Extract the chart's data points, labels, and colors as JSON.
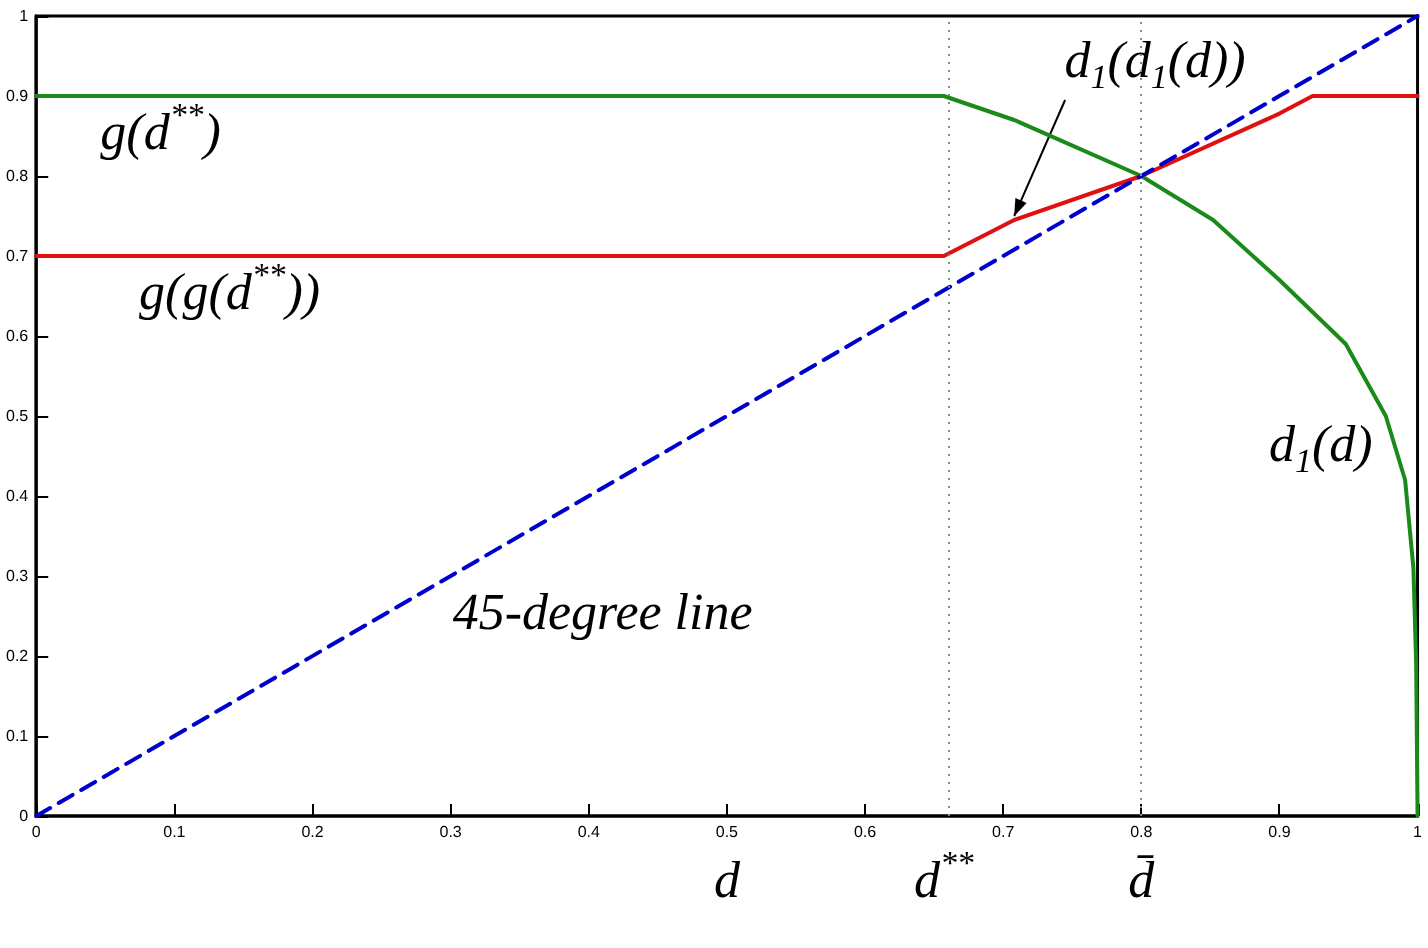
{
  "chart_data": {
    "type": "line",
    "xlabel": "d",
    "xlim": [
      0,
      1
    ],
    "ylim": [
      0,
      1
    ],
    "xticks": [
      0,
      0.1,
      0.2,
      0.3,
      0.4,
      0.5,
      0.6,
      0.7,
      0.8,
      0.9,
      1
    ],
    "yticks": [
      0,
      0.1,
      0.2,
      0.3,
      0.4,
      0.5,
      0.6,
      0.7,
      0.8,
      0.9,
      1
    ],
    "grid": false,
    "marker": "none",
    "series": [
      {
        "color": "#1a8a1a",
        "line_style": "solid",
        "x": [
          0,
          0.657,
          0.708,
          0.8,
          0.852,
          0.9,
          0.948,
          0.977,
          0.991,
          0.997,
          0.999,
          1
        ],
        "values": [
          0.9,
          0.9,
          0.87,
          0.8,
          0.745,
          0.67,
          0.59,
          0.5,
          0.42,
          0.31,
          0.19,
          0
        ]
      },
      {
        "color": "#e01010",
        "line_style": "solid",
        "x": [
          0,
          0.657,
          0.708,
          0.8,
          0.9,
          0.924,
          1
        ],
        "values": [
          0.7,
          0.7,
          0.745,
          0.8,
          0.878,
          0.9,
          0.9
        ]
      },
      {
        "color": "#0000cc",
        "line_style": "dashed",
        "x": [
          0,
          1
        ],
        "values": [
          0,
          1
        ]
      }
    ],
    "ref_lines": [
      {
        "axis": "x",
        "value": 0.657,
        "label": "d$^{**}$",
        "line_style": "dotted",
        "color": "#888888"
      },
      {
        "axis": "x",
        "value": 0.8,
        "label": "d̄",
        "line_style": "dotted",
        "color": "#888888"
      }
    ],
    "annotations": [
      "g(d$^{**}$)",
      "g(g(d$^{**}$))",
      {
        "text": "d$_{1}$(d$_{1}$(d))",
        "x": 0.708,
        "y": 0.75
      },
      "d$_{1}$(d)",
      "45-degree line"
    ]
  }
}
